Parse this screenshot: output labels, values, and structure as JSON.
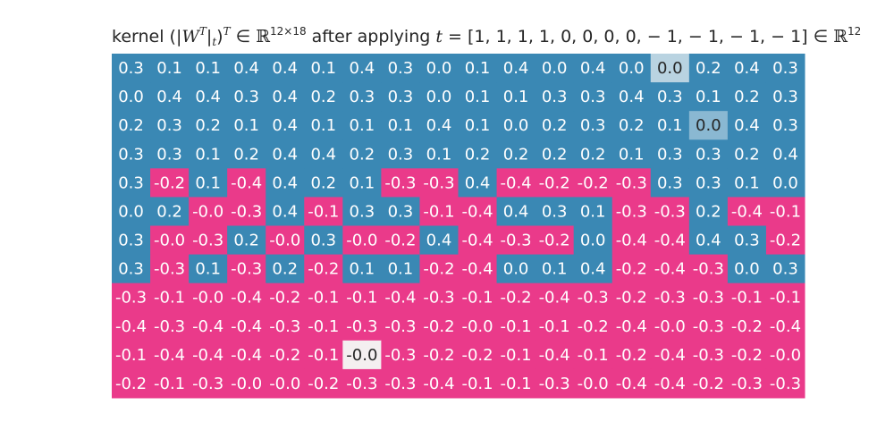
{
  "chart_data": {
    "type": "heatmap",
    "title": {
      "prefix": "kernel (|",
      "W": "W",
      "T1": "T",
      "bar": "|",
      "t_sub": "t",
      "close": ")",
      "T2": "T",
      "in1": " ∈ ",
      "R1": "ℝ",
      "dims": "12×18",
      "mid": " after applying ",
      "t": "t",
      "vector": " = [1, 1, 1, 1, 0, 0, 0, 0, − 1, − 1, − 1, − 1]",
      "in2": " ∈ ",
      "R2": "ℝ",
      "dim2": "12"
    },
    "rows": 12,
    "cols": 18,
    "values": [
      [
        "0.3",
        "0.1",
        "0.1",
        "0.4",
        "0.4",
        "0.1",
        "0.4",
        "0.3",
        "0.0",
        "0.1",
        "0.4",
        "0.0",
        "0.4",
        "0.0",
        "0.0",
        "0.2",
        "0.4",
        "0.3"
      ],
      [
        "0.0",
        "0.4",
        "0.4",
        "0.3",
        "0.4",
        "0.2",
        "0.3",
        "0.3",
        "0.0",
        "0.1",
        "0.1",
        "0.3",
        "0.3",
        "0.4",
        "0.3",
        "0.1",
        "0.2",
        "0.3"
      ],
      [
        "0.2",
        "0.3",
        "0.2",
        "0.1",
        "0.4",
        "0.1",
        "0.1",
        "0.1",
        "0.4",
        "0.1",
        "0.0",
        "0.2",
        "0.3",
        "0.2",
        "0.1",
        "0.0",
        "0.4",
        "0.3"
      ],
      [
        "0.3",
        "0.3",
        "0.1",
        "0.2",
        "0.4",
        "0.4",
        "0.2",
        "0.3",
        "0.1",
        "0.2",
        "0.2",
        "0.2",
        "0.2",
        "0.1",
        "0.3",
        "0.3",
        "0.2",
        "0.4"
      ],
      [
        "0.3",
        "-0.2",
        "0.1",
        "-0.4",
        "0.4",
        "0.2",
        "0.1",
        "-0.3",
        "-0.3",
        "0.4",
        "-0.4",
        "-0.2",
        "-0.2",
        "-0.3",
        "0.3",
        "0.3",
        "0.1",
        "0.0"
      ],
      [
        "0.0",
        "0.2",
        "-0.0",
        "-0.3",
        "0.4",
        "-0.1",
        "0.3",
        "0.3",
        "-0.1",
        "-0.4",
        "0.4",
        "0.3",
        "0.1",
        "-0.3",
        "-0.3",
        "0.2",
        "-0.4",
        "-0.1"
      ],
      [
        "0.3",
        "-0.0",
        "-0.3",
        "0.2",
        "-0.0",
        "0.3",
        "-0.0",
        "-0.2",
        "0.4",
        "-0.4",
        "-0.3",
        "-0.2",
        "0.0",
        "-0.4",
        "-0.4",
        "0.4",
        "0.3",
        "-0.2"
      ],
      [
        "0.3",
        "-0.3",
        "0.1",
        "-0.3",
        "0.2",
        "-0.2",
        "0.1",
        "0.1",
        "-0.2",
        "-0.4",
        "0.0",
        "0.1",
        "0.4",
        "-0.2",
        "-0.4",
        "-0.3",
        "0.0",
        "0.3"
      ],
      [
        "-0.3",
        "-0.1",
        "-0.0",
        "-0.4",
        "-0.2",
        "-0.1",
        "-0.1",
        "-0.4",
        "-0.3",
        "-0.1",
        "-0.2",
        "-0.4",
        "-0.3",
        "-0.2",
        "-0.3",
        "-0.3",
        "-0.1",
        "-0.1"
      ],
      [
        "-0.4",
        "-0.3",
        "-0.4",
        "-0.4",
        "-0.3",
        "-0.1",
        "-0.3",
        "-0.3",
        "-0.2",
        "-0.0",
        "-0.1",
        "-0.1",
        "-0.2",
        "-0.4",
        "-0.0",
        "-0.3",
        "-0.2",
        "-0.4"
      ],
      [
        "-0.1",
        "-0.4",
        "-0.4",
        "-0.4",
        "-0.2",
        "-0.1",
        "-0.0",
        "-0.3",
        "-0.2",
        "-0.2",
        "-0.1",
        "-0.4",
        "-0.1",
        "-0.2",
        "-0.4",
        "-0.3",
        "-0.2",
        "-0.0"
      ],
      [
        "-0.2",
        "-0.1",
        "-0.3",
        "-0.0",
        "-0.0",
        "-0.2",
        "-0.3",
        "-0.3",
        "-0.4",
        "-0.1",
        "-0.1",
        "-0.3",
        "-0.0",
        "-0.4",
        "-0.4",
        "-0.2",
        "-0.3",
        "-0.3"
      ]
    ],
    "highlighted_cells": [
      {
        "row": 0,
        "col": 14,
        "color": "#b9d3e1"
      },
      {
        "row": 2,
        "col": 15,
        "color": "#8ab8d2"
      },
      {
        "row": 10,
        "col": 6,
        "color": "#f4eff0"
      }
    ],
    "colors": {
      "positive": "#3a88b4",
      "negative": "#ea3a8a",
      "text_on_color": "#ffffff",
      "text_on_light": "#262626"
    },
    "grid": false,
    "axis_ticks": false
  }
}
